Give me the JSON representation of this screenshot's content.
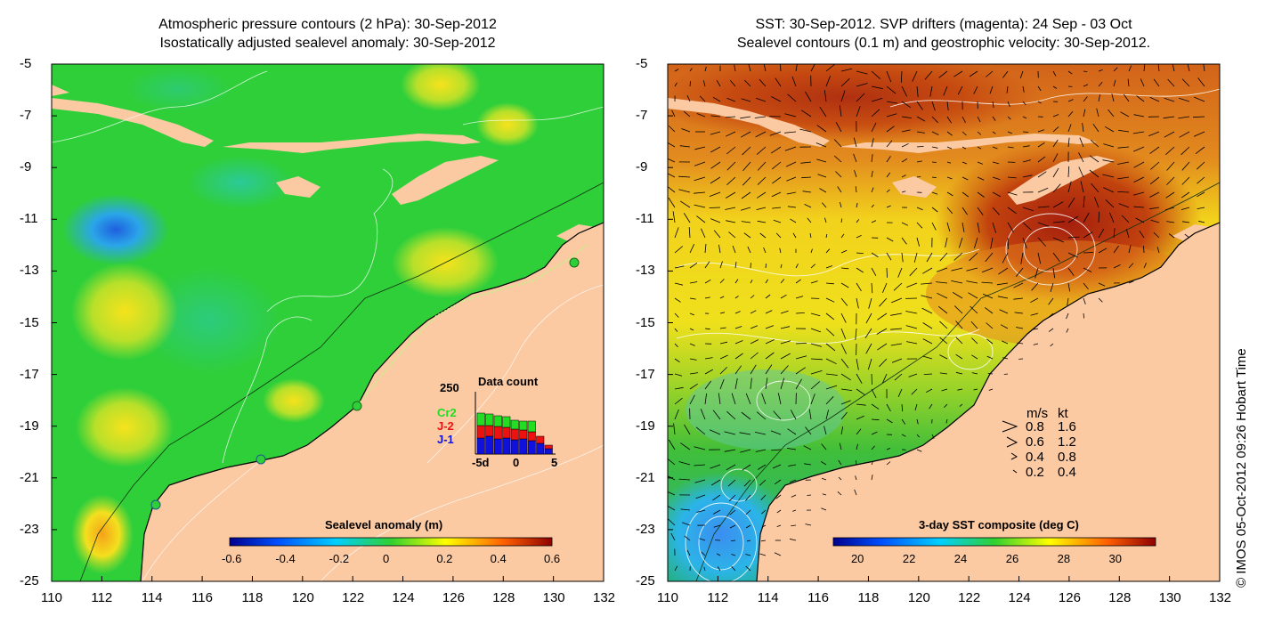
{
  "left_panel": {
    "title_line1": "Atmospheric pressure contours (2 hPa): 30-Sep-2012",
    "title_line2": "Isostatically adjusted sealevel anomaly: 30-Sep-2012",
    "colorbar": {
      "title": "Sealevel anomaly (m)",
      "ticks": [
        "-0.6",
        "-0.4",
        "-0.2",
        "0",
        "0.2",
        "0.4",
        "0.6"
      ],
      "range": [
        -0.6,
        0.6
      ]
    },
    "inset": {
      "title": "Data count",
      "y_max_label": "250",
      "x_labels": [
        "-5d",
        "0",
        "5"
      ],
      "legend": [
        {
          "name": "Cr2",
          "color": "#22dd22"
        },
        {
          "name": "J-2",
          "color": "#ee1111"
        },
        {
          "name": "J-1",
          "color": "#1111dd"
        }
      ]
    }
  },
  "right_panel": {
    "title_line1": "SST: 30-Sep-2012. SVP drifters (magenta): 24 Sep - 03 Oct",
    "title_line2": "Sealevel contours (0.1 m) and geostrophic velocity: 30-Sep-2012.",
    "colorbar": {
      "title": "3-day SST composite (deg C)",
      "ticks": [
        "20",
        "22",
        "24",
        "26",
        "28",
        "30"
      ],
      "range": [
        19,
        31.5
      ]
    },
    "speed_legend": {
      "header_ms": "m/s",
      "header_kt": "kt",
      "rows": [
        {
          "ms": "0.8",
          "kt": "1.6"
        },
        {
          "ms": "0.6",
          "kt": "1.2"
        },
        {
          "ms": "0.4",
          "kt": "0.8"
        },
        {
          "ms": "0.2",
          "kt": "0.4"
        }
      ]
    }
  },
  "axes": {
    "x_ticks": [
      "110",
      "112",
      "114",
      "116",
      "118",
      "120",
      "122",
      "124",
      "126",
      "128",
      "130",
      "132"
    ],
    "y_ticks": [
      "-5",
      "-7",
      "-9",
      "-11",
      "-13",
      "-15",
      "-17",
      "-19",
      "-21",
      "-23",
      "-25"
    ],
    "lon_range": [
      110,
      132
    ],
    "lat_range": [
      -25,
      -5
    ]
  },
  "credit": "© IMOS 05-Oct-2012 09:26 Hobart Time"
}
